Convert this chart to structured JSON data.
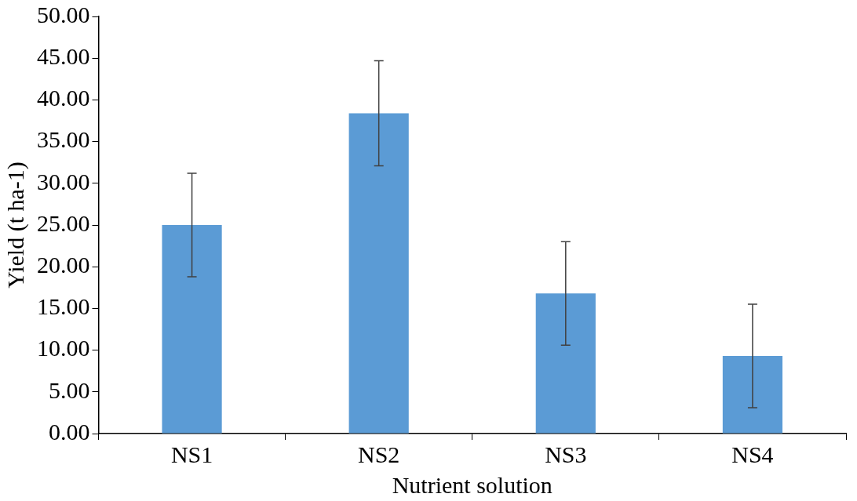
{
  "chart_data": {
    "type": "bar",
    "xlabel": "Nutrient solution",
    "ylabel": "Yield (t ha-1)",
    "categories": [
      "NS1",
      "NS2",
      "NS3",
      "NS4"
    ],
    "values": [
      25.0,
      38.4,
      16.8,
      9.3
    ],
    "errors": [
      6.2,
      6.3,
      6.2,
      6.2
    ],
    "color": "#5b9bd5",
    "ylim": [
      0,
      50
    ],
    "yticks": [
      {
        "value": 0,
        "label": "0.00"
      },
      {
        "value": 5,
        "label": "5.00"
      },
      {
        "value": 10,
        "label": "10.00"
      },
      {
        "value": 15,
        "label": "15.00"
      },
      {
        "value": 20,
        "label": "20.00"
      },
      {
        "value": 25,
        "label": "25.00"
      },
      {
        "value": 30,
        "label": "30.00"
      },
      {
        "value": 35,
        "label": "35.00"
      },
      {
        "value": 40,
        "label": "40.00"
      },
      {
        "value": 45,
        "label": "45.00"
      },
      {
        "value": 50,
        "label": "50.00"
      }
    ],
    "grid": false,
    "legend": false
  }
}
